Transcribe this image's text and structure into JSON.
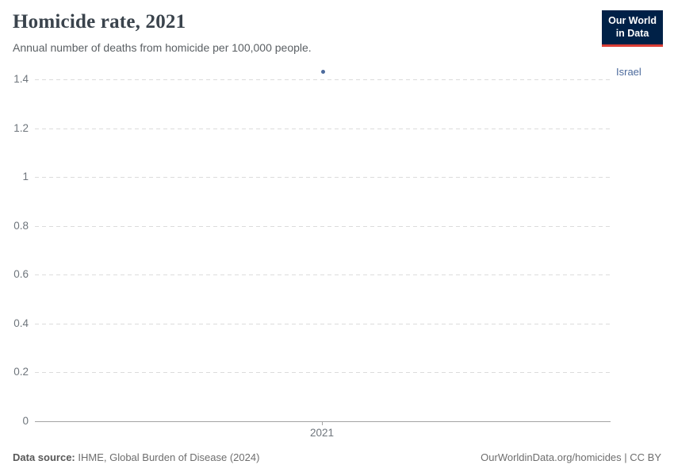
{
  "header": {
    "title": "Homicide rate, 2021",
    "subtitle": "Annual number of deaths from homicide per 100,000 people."
  },
  "logo": {
    "line1": "Our World",
    "line2": "in Data",
    "bg_color": "#002147",
    "underline_color": "#DC3E36"
  },
  "chart_data": {
    "type": "scatter",
    "title": "Homicide rate, 2021",
    "x": [
      2021
    ],
    "xtick_labels": [
      "2021"
    ],
    "series": [
      {
        "name": "Israel",
        "values": [
          1.43
        ],
        "color": "#4C6A9C"
      }
    ],
    "ylim": [
      0,
      1.4
    ],
    "yticks": [
      0,
      0.2,
      0.4,
      0.6,
      0.8,
      1,
      1.2,
      1.4
    ],
    "ytick_labels": [
      "0",
      "0.2",
      "0.4",
      "0.6",
      "0.8",
      "1",
      "1.2",
      "1.4"
    ],
    "ylabel": "",
    "xlabel": "",
    "grid": true,
    "gridline_style": "dashed",
    "legend_position": "right-entity-label"
  },
  "footer": {
    "source_label": "Data source:",
    "source_text": " IHME, Global Burden of Disease (2024)",
    "rights": "OurWorldinData.org/homicides | CC BY"
  },
  "colors": {
    "accent": "#4C6A9C",
    "gridline": "#DCDCDC",
    "axis": "#A3A3A3",
    "text_muted": "#6E757C"
  }
}
